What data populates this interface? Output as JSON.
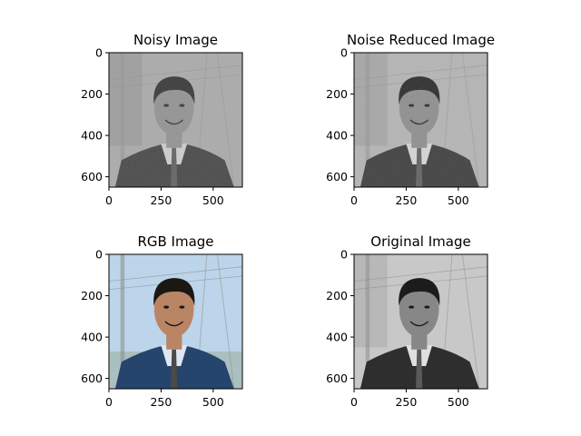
{
  "figure": {
    "background": "#ffffff"
  },
  "chart_data": [
    {
      "type": "image",
      "title": "Noisy Image",
      "xlim": [
        0,
        640
      ],
      "ylim": [
        650,
        0
      ],
      "xticks": [
        0,
        250,
        500
      ],
      "yticks": [
        0,
        200,
        400,
        600
      ],
      "style": {
        "bg": "#a9a9a9",
        "tone": "gray",
        "noise": true,
        "hair": "#2c2c2c",
        "skin": "#8f8f8f",
        "suit": "#3d3d3d",
        "collar": "#cfcfcf"
      }
    },
    {
      "type": "image",
      "title": "Noise Reduced Image",
      "xlim": [
        0,
        640
      ],
      "ylim": [
        650,
        0
      ],
      "xticks": [
        0,
        250,
        500
      ],
      "yticks": [
        0,
        200,
        400,
        600
      ],
      "style": {
        "bg": "#b4b4b4",
        "tone": "gray",
        "noise": true,
        "hair": "#1f1f1f",
        "skin": "#8a8a8a",
        "suit": "#333333",
        "collar": "#d8d8d8"
      }
    },
    {
      "type": "image",
      "title": "RGB Image",
      "xlim": [
        0,
        640
      ],
      "ylim": [
        650,
        0
      ],
      "xticks": [
        0,
        250,
        500
      ],
      "yticks": [
        0,
        200,
        400,
        600
      ],
      "style": {
        "bg": "#bcd5ea",
        "tone": "color",
        "noise": false,
        "hair": "#1b1712",
        "skin": "#b98565",
        "suit": "#26456c",
        "collar": "#dfe7f2"
      }
    },
    {
      "type": "image",
      "title": "Original Image",
      "xlim": [
        0,
        640
      ],
      "ylim": [
        650,
        0
      ],
      "xticks": [
        0,
        250,
        500
      ],
      "yticks": [
        0,
        200,
        400,
        600
      ],
      "style": {
        "bg": "#c8c8c8",
        "tone": "gray",
        "noise": false,
        "hair": "#1c1c1c",
        "skin": "#878787",
        "suit": "#2e2e2e",
        "collar": "#e0e0e0"
      }
    }
  ]
}
